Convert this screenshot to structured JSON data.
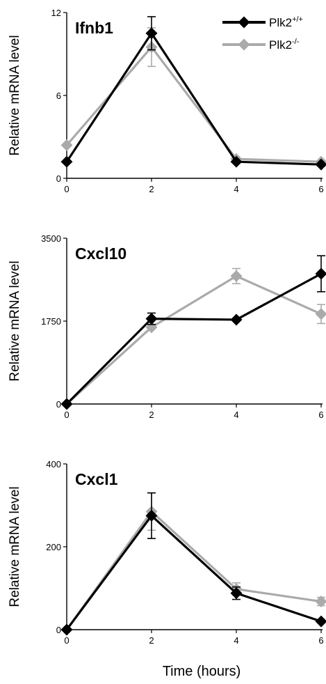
{
  "figure": {
    "xlabel": "Time (hours)"
  },
  "legend": {
    "entries": [
      {
        "base": "Plk2",
        "sup": "+/+",
        "color": "#000000"
      },
      {
        "base": "Plk2",
        "sup": "-/-",
        "color": "#aaaaaa"
      }
    ]
  },
  "chart_data": [
    {
      "type": "line",
      "title": "Ifnb1",
      "ylabel": "Relative mRNA level",
      "x": [
        0,
        2,
        4,
        6
      ],
      "xticks": [
        "0",
        "2",
        "4",
        "6"
      ],
      "ylim": [
        0,
        12
      ],
      "yticks": [
        "0",
        "6",
        "12"
      ],
      "series": [
        {
          "name": "Plk2+/+",
          "color": "#000000",
          "values": [
            1.2,
            10.5,
            1.2,
            1.0
          ],
          "errors": [
            0,
            1.2,
            0,
            0
          ]
        },
        {
          "name": "Plk2-/-",
          "color": "#aaaaaa",
          "values": [
            2.4,
            9.5,
            1.4,
            1.2
          ],
          "errors": [
            0,
            1.4,
            0,
            0
          ]
        }
      ]
    },
    {
      "type": "line",
      "title": "Cxcl10",
      "ylabel": "Relative mRNA level",
      "x": [
        0,
        2,
        4,
        6
      ],
      "xticks": [
        "0",
        "2",
        "4",
        "6"
      ],
      "ylim": [
        0,
        3500
      ],
      "yticks": [
        "0",
        "1750",
        "3500"
      ],
      "series": [
        {
          "name": "Plk2+/+",
          "color": "#000000",
          "values": [
            0,
            1800,
            1780,
            2750
          ],
          "errors": [
            0,
            120,
            0,
            380
          ]
        },
        {
          "name": "Plk2-/-",
          "color": "#aaaaaa",
          "values": [
            0,
            1620,
            2700,
            1900
          ],
          "errors": [
            0,
            0,
            160,
            200
          ]
        }
      ]
    },
    {
      "type": "line",
      "title": "Cxcl1",
      "ylabel": "Relative mRNA level",
      "x": [
        0,
        2,
        4,
        6
      ],
      "xticks": [
        "0",
        "2",
        "4",
        "6"
      ],
      "ylim": [
        0,
        400
      ],
      "yticks": [
        "0",
        "200",
        "400"
      ],
      "series": [
        {
          "name": "Plk2+/+",
          "color": "#000000",
          "values": [
            0,
            275,
            88,
            20
          ],
          "errors": [
            0,
            55,
            15,
            0
          ]
        },
        {
          "name": "Plk2-/-",
          "color": "#aaaaaa",
          "values": [
            0,
            285,
            98,
            68
          ],
          "errors": [
            0,
            45,
            15,
            10
          ]
        }
      ]
    }
  ]
}
